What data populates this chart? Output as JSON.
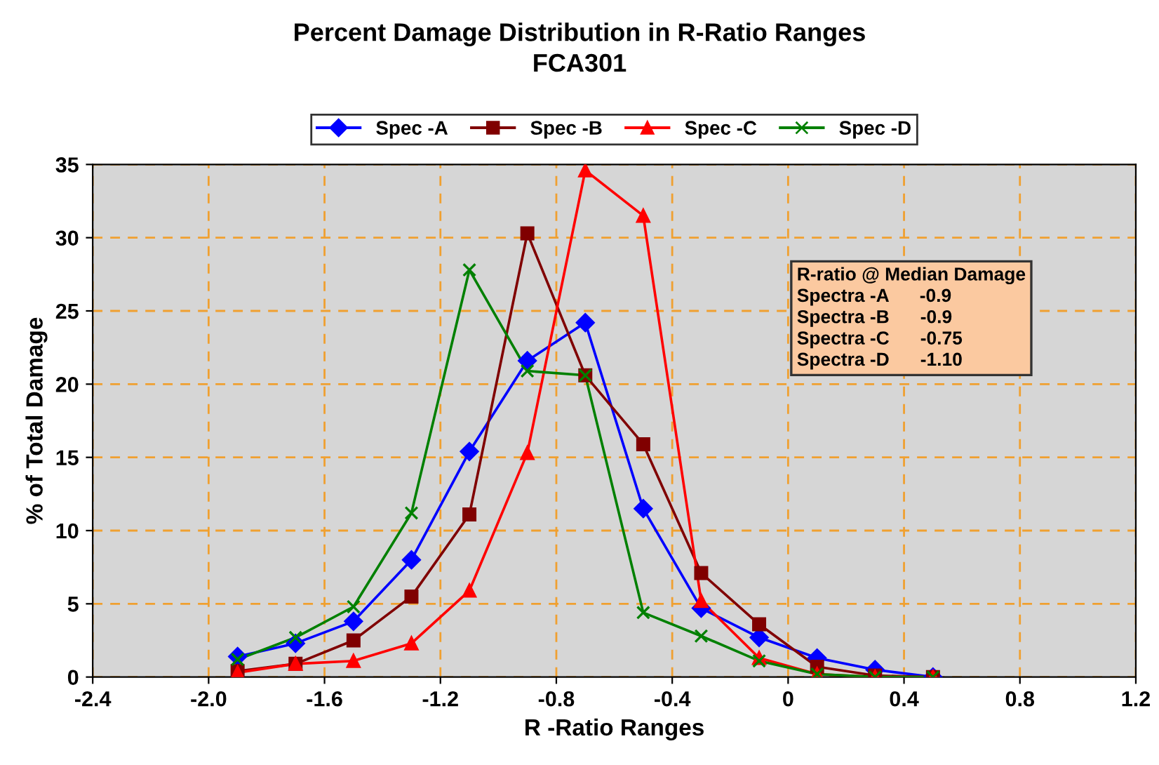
{
  "chart_data": {
    "type": "line",
    "title": "Percent Damage Distribution in R-Ratio Ranges",
    "subtitle": "FCA301",
    "xlabel": "R -Ratio Ranges",
    "ylabel": "% of Total Damage",
    "x": [
      -1.9,
      -1.7,
      -1.5,
      -1.3,
      -1.1,
      -0.9,
      -0.7,
      -0.5,
      -0.3,
      -0.1,
      0.1,
      0.3,
      0.5
    ],
    "series": [
      {
        "name": "Spec -A",
        "color": "#0000ff",
        "marker": "diamond",
        "values": [
          1.4,
          2.3,
          3.8,
          8.0,
          15.4,
          21.6,
          24.2,
          11.5,
          4.7,
          2.7,
          1.3,
          0.5,
          0.0
        ]
      },
      {
        "name": "Spec -B",
        "color": "#800000",
        "marker": "square",
        "values": [
          0.4,
          0.9,
          2.5,
          5.5,
          11.1,
          30.3,
          20.6,
          15.9,
          7.1,
          3.6,
          0.7,
          0.1,
          0.0
        ]
      },
      {
        "name": "Spec -C",
        "color": "#ff0000",
        "marker": "triangle",
        "values": [
          0.3,
          0.9,
          1.1,
          2.3,
          5.9,
          15.3,
          34.6,
          31.5,
          5.2,
          1.3,
          0.2,
          0.0,
          0.0
        ]
      },
      {
        "name": "Spec -D",
        "color": "#008000",
        "marker": "cross",
        "values": [
          1.2,
          2.7,
          4.8,
          11.2,
          27.8,
          20.9,
          20.6,
          4.4,
          2.8,
          1.1,
          0.2,
          0.0,
          0.0
        ]
      }
    ],
    "xlim": [
      -2.4,
      1.2
    ],
    "xticks": [
      -2.4,
      {
        "value": -2.0,
        "label": "-2.0"
      },
      -1.6,
      -1.2,
      -0.8,
      -0.4,
      0,
      0.4,
      0.8,
      1.2
    ],
    "ylim": [
      0,
      35
    ],
    "yticks": [
      0,
      5,
      10,
      15,
      20,
      25,
      30,
      35
    ],
    "grid": true,
    "legend": "top",
    "line_style": "solid",
    "annotations": [
      "R-ratio @ Median Damage",
      "Spectra -A      -0.9",
      "Spectra -B      -0.9",
      "Spectra -C      -0.75",
      "Spectra -D      -1.10"
    ]
  }
}
